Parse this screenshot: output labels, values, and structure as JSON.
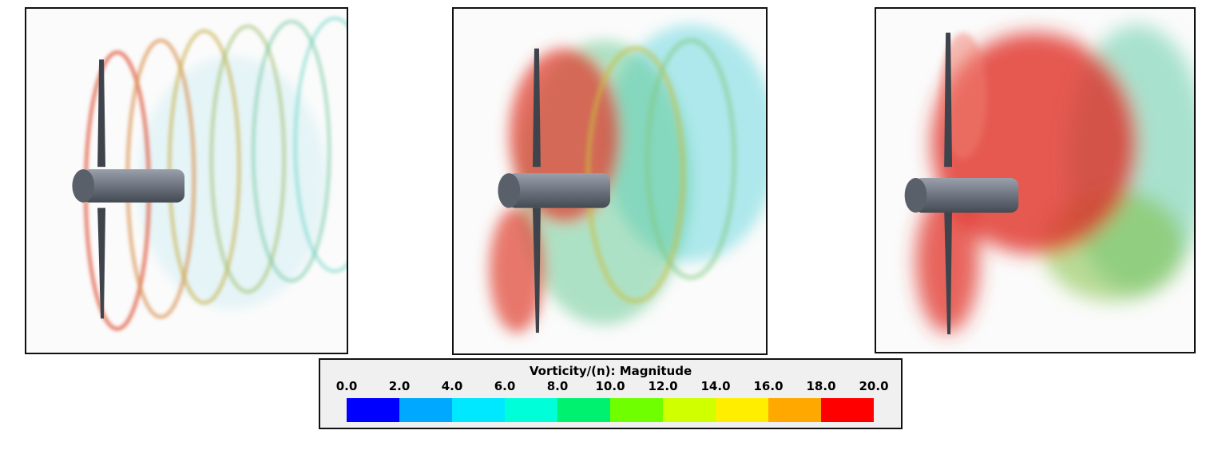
{
  "legend": {
    "title": "Vorticity/(n): Magnitude",
    "ticks": [
      "0.0",
      "2.0",
      "4.0",
      "6.0",
      "8.0",
      "10.0",
      "12.0",
      "14.0",
      "16.0",
      "18.0",
      "20.0"
    ],
    "colors": [
      "#0000ff",
      "#00a8ff",
      "#00e8ff",
      "#00ffd8",
      "#00f070",
      "#70ff00",
      "#d0ff00",
      "#ffee00",
      "#ffa800",
      "#ff0000"
    ]
  },
  "panels": [
    {
      "name": "vortex-panel-low",
      "variant": "low"
    },
    {
      "name": "vortex-panel-mid",
      "variant": "mid"
    },
    {
      "name": "vortex-panel-high",
      "variant": "high"
    }
  ]
}
